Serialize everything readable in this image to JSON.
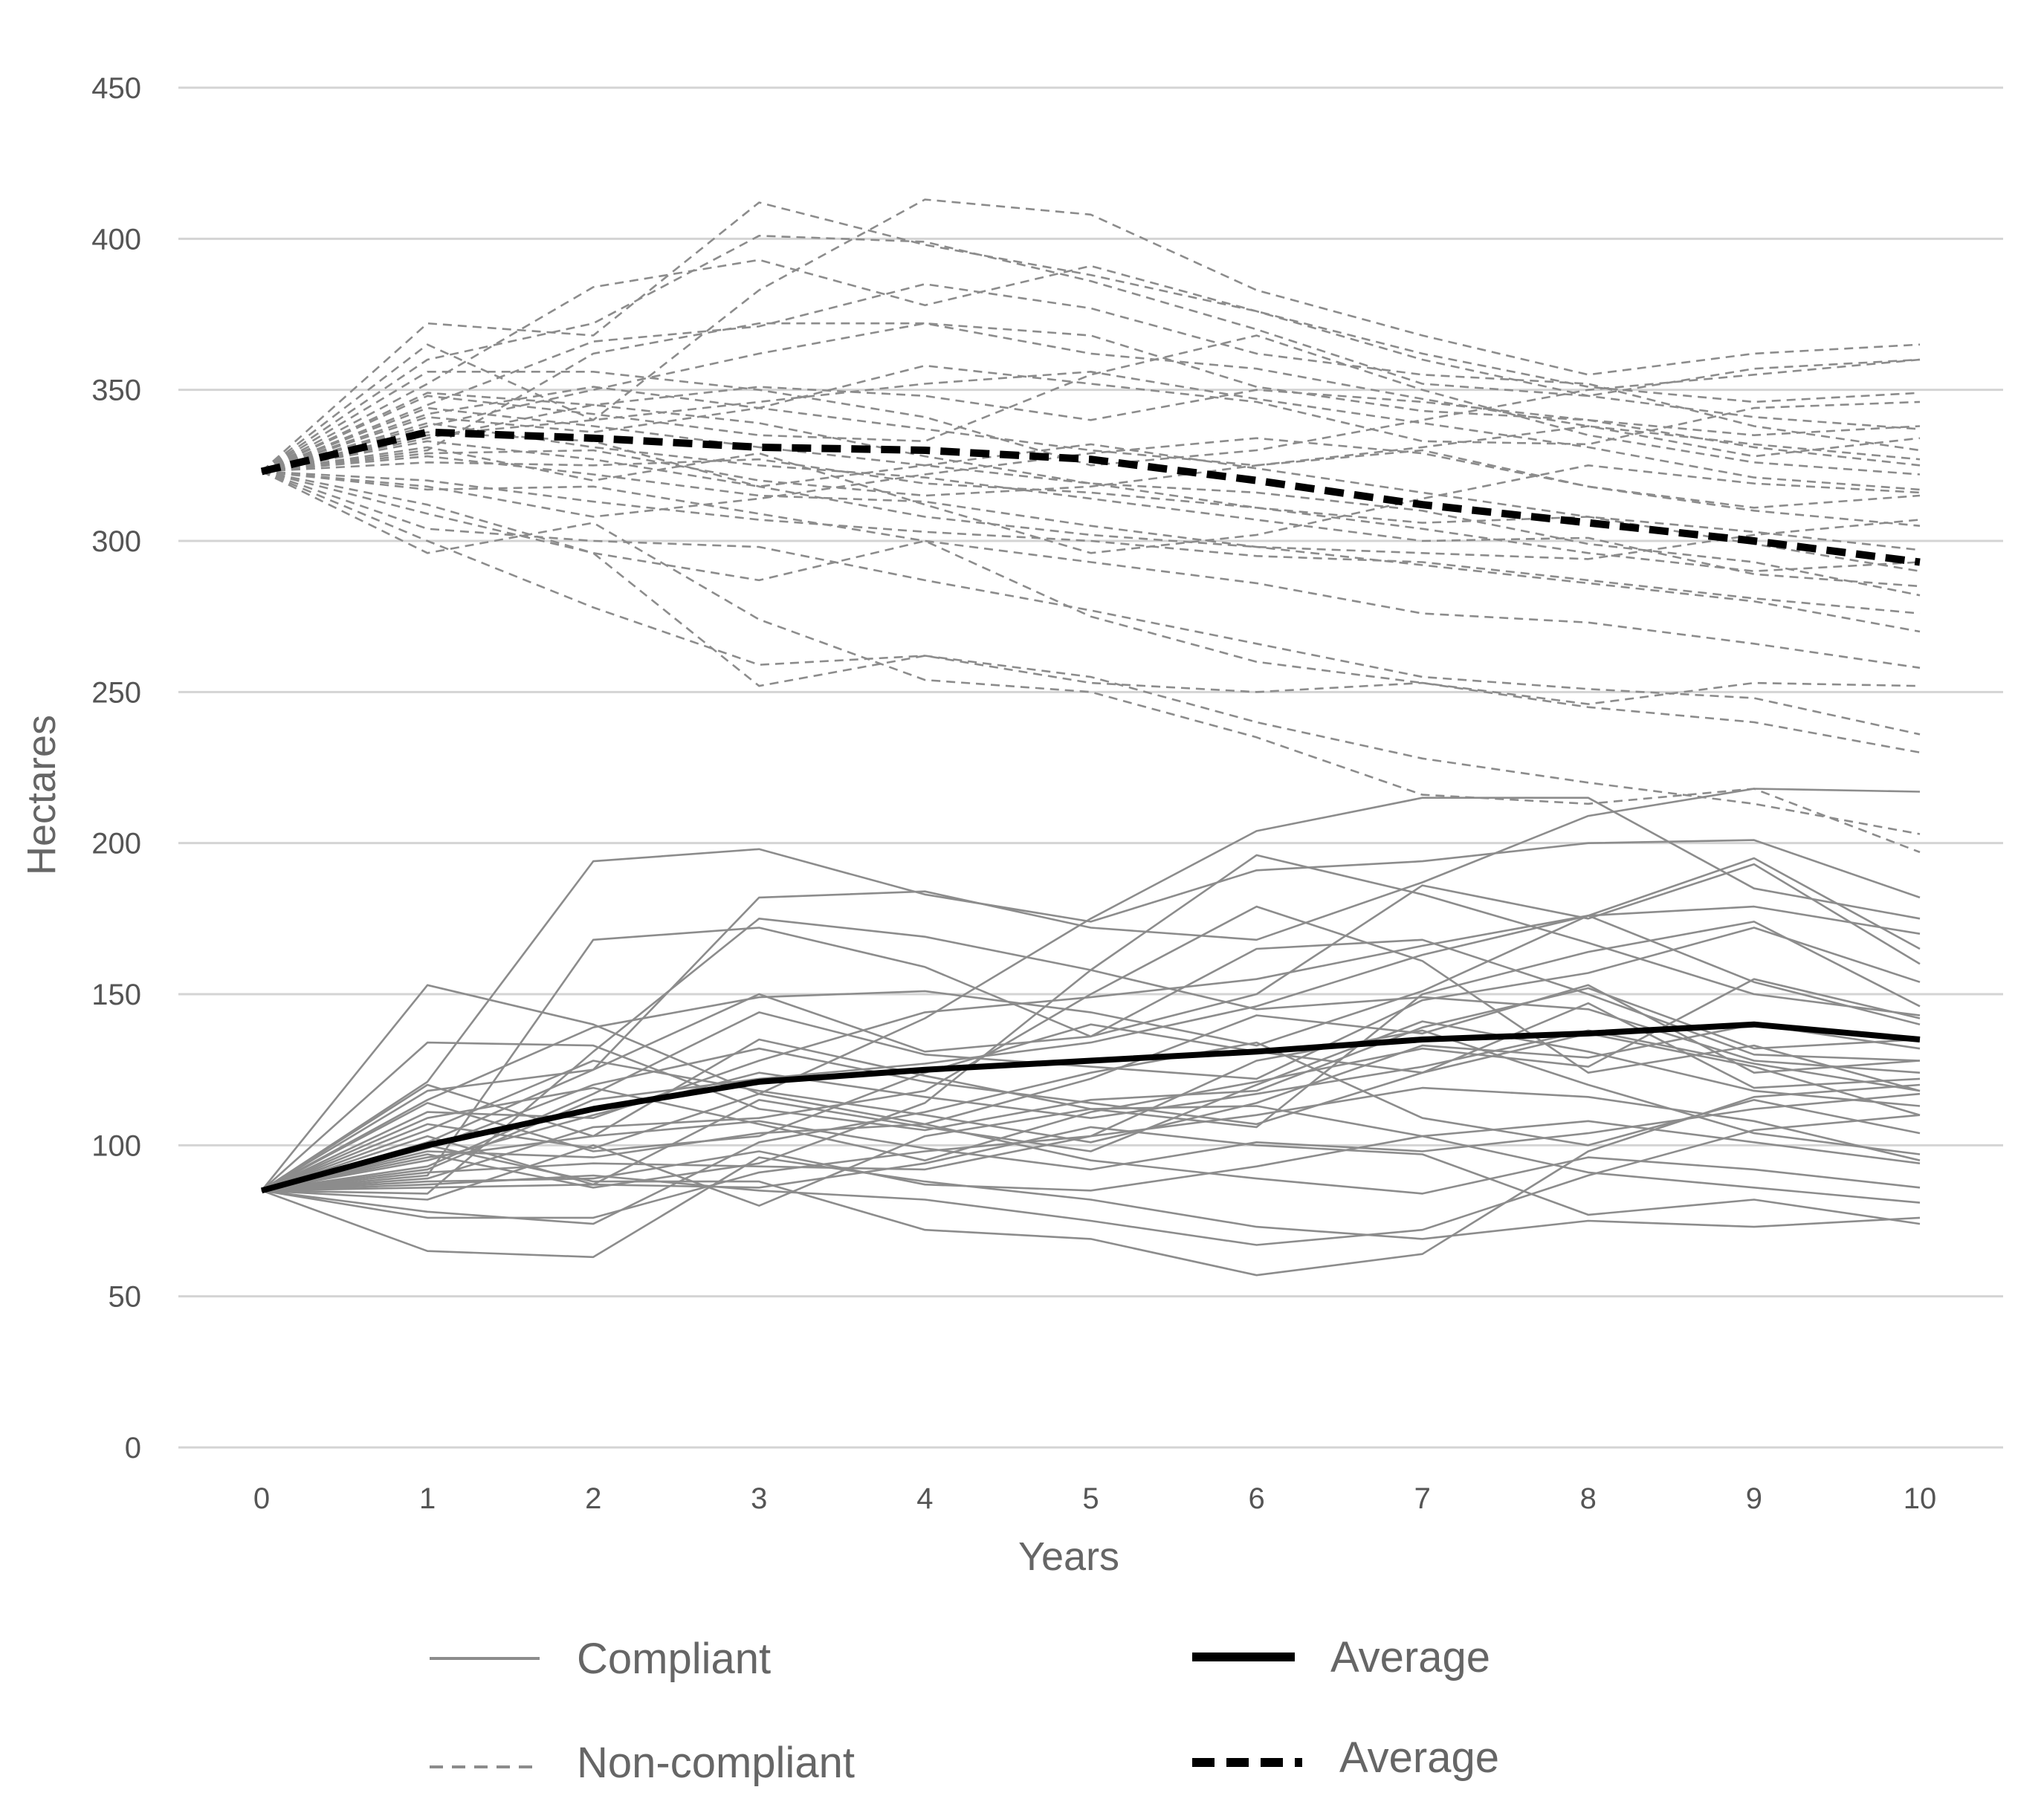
{
  "chart_data": {
    "type": "line",
    "xlabel": "Years",
    "ylabel": "Hectares",
    "x": [
      0,
      1,
      2,
      3,
      4,
      5,
      6,
      7,
      8,
      9,
      10
    ],
    "y_ticks": [
      0,
      50,
      100,
      150,
      200,
      250,
      300,
      350,
      400,
      450
    ],
    "ylim": [
      0,
      450
    ],
    "grid": true,
    "legend_position": "bottom",
    "legend": [
      {
        "label": "Compliant",
        "style": "thin-solid-grey"
      },
      {
        "label": "Average",
        "style": "thick-solid-black"
      },
      {
        "label": "Non-compliant",
        "style": "thin-dashed-grey"
      },
      {
        "label": "Average",
        "style": "thick-dashed-black"
      }
    ],
    "colors": {
      "individual": "#8c8c8c",
      "average": "#000000",
      "grid": "#d4d4d4"
    },
    "series_average_compliant": {
      "name": "Average",
      "values": [
        85,
        100,
        112,
        121,
        125,
        128,
        131,
        135,
        137,
        140,
        135
      ]
    },
    "series_average_noncompliant": {
      "name": "Average",
      "values": [
        323,
        336,
        334,
        331,
        330,
        327,
        320,
        312,
        306,
        300,
        293
      ]
    },
    "series_compliant": [
      [
        85,
        153,
        140,
        117,
        107,
        122,
        143,
        137,
        153,
        124,
        128
      ],
      [
        85,
        134,
        133,
        112,
        105,
        115,
        118,
        139,
        152,
        132,
        135
      ],
      [
        85,
        121,
        194,
        198,
        183,
        174,
        191,
        194,
        200,
        201,
        182
      ],
      [
        85,
        90,
        168,
        172,
        159,
        136,
        150,
        186,
        175,
        193,
        160
      ],
      [
        85,
        101,
        125,
        182,
        184,
        172,
        168,
        187,
        209,
        218,
        217
      ],
      [
        85,
        115,
        139,
        149,
        151,
        144,
        133,
        151,
        176,
        195,
        165
      ],
      [
        85,
        120,
        103,
        135,
        123,
        112,
        106,
        150,
        164,
        174,
        146
      ],
      [
        85,
        107,
        99,
        117,
        142,
        175,
        204,
        215,
        215,
        185,
        175
      ],
      [
        85,
        97,
        86,
        94,
        114,
        158,
        196,
        183,
        167,
        150,
        143
      ],
      [
        85,
        111,
        109,
        128,
        144,
        149,
        155,
        166,
        176,
        154,
        140
      ],
      [
        85,
        93,
        117,
        144,
        130,
        126,
        122,
        148,
        157,
        172,
        154
      ],
      [
        85,
        118,
        125,
        150,
        131,
        136,
        165,
        168,
        150,
        130,
        128
      ],
      [
        85,
        99,
        120,
        132,
        121,
        114,
        107,
        124,
        147,
        119,
        122
      ],
      [
        85,
        105,
        128,
        118,
        110,
        101,
        114,
        133,
        129,
        140,
        132
      ],
      [
        85,
        89,
        106,
        109,
        118,
        150,
        179,
        161,
        124,
        133,
        118
      ],
      [
        85,
        84,
        131,
        175,
        169,
        158,
        145,
        149,
        145,
        128,
        124
      ],
      [
        85,
        95,
        110,
        124,
        116,
        109,
        117,
        126,
        138,
        127,
        118
      ],
      [
        85,
        103,
        87,
        115,
        106,
        98,
        120,
        141,
        131,
        118,
        113
      ],
      [
        85,
        91,
        94,
        93,
        92,
        103,
        110,
        119,
        116,
        108,
        95
      ],
      [
        85,
        114,
        98,
        103,
        124,
        140,
        131,
        124,
        137,
        126,
        110
      ],
      [
        85,
        78,
        74,
        101,
        111,
        124,
        134,
        109,
        100,
        115,
        104
      ],
      [
        85,
        76,
        76,
        91,
        98,
        103,
        128,
        138,
        120,
        104,
        97
      ],
      [
        85,
        65,
        63,
        96,
        88,
        82,
        73,
        69,
        75,
        73,
        76
      ],
      [
        85,
        82,
        100,
        80,
        103,
        112,
        113,
        103,
        108,
        101,
        94
      ],
      [
        85,
        96,
        103,
        108,
        99,
        92,
        101,
        98,
        104,
        112,
        117
      ],
      [
        85,
        92,
        115,
        122,
        127,
        134,
        146,
        163,
        176,
        179,
        170
      ],
      [
        85,
        109,
        119,
        107,
        95,
        111,
        121,
        132,
        126,
        155,
        142
      ],
      [
        85,
        88,
        89,
        98,
        87,
        85,
        93,
        103,
        91,
        86,
        81
      ],
      [
        85,
        98,
        96,
        104,
        107,
        95,
        89,
        84,
        96,
        92,
        86
      ],
      [
        85,
        87,
        90,
        85,
        82,
        75,
        67,
        72,
        90,
        105,
        110
      ],
      [
        85,
        100,
        88,
        88,
        72,
        69,
        57,
        64,
        98,
        116,
        120
      ],
      [
        85,
        86,
        87,
        86,
        94,
        106,
        100,
        97,
        77,
        82,
        74
      ]
    ],
    "series_noncompliant": [
      [
        323,
        372,
        368,
        412,
        398,
        388,
        376,
        362,
        351,
        346,
        349
      ],
      [
        323,
        365,
        340,
        383,
        413,
        408,
        383,
        368,
        355,
        362,
        365
      ],
      [
        323,
        360,
        372,
        401,
        399,
        386,
        370,
        352,
        348,
        357,
        360
      ],
      [
        323,
        352,
        384,
        393,
        378,
        391,
        376,
        360,
        348,
        341,
        337
      ],
      [
        323,
        345,
        366,
        371,
        385,
        377,
        362,
        355,
        352,
        338,
        330
      ],
      [
        323,
        338,
        350,
        362,
        372,
        368,
        351,
        343,
        340,
        331,
        325
      ],
      [
        323,
        330,
        362,
        372,
        372,
        362,
        357,
        347,
        338,
        332,
        327
      ],
      [
        323,
        341,
        336,
        344,
        358,
        352,
        346,
        333,
        332,
        344,
        346
      ],
      [
        323,
        348,
        342,
        335,
        333,
        355,
        368,
        350,
        335,
        326,
        322
      ],
      [
        323,
        356,
        356,
        350,
        341,
        325,
        330,
        340,
        350,
        355,
        360
      ],
      [
        323,
        331,
        320,
        329,
        312,
        296,
        302,
        314,
        325,
        319,
        316
      ],
      [
        323,
        329,
        330,
        320,
        315,
        318,
        325,
        330,
        318,
        310,
        305
      ],
      [
        323,
        334,
        345,
        339,
        328,
        319,
        311,
        304,
        296,
        290,
        293
      ],
      [
        323,
        320,
        313,
        307,
        303,
        300,
        295,
        293,
        287,
        281,
        276
      ],
      [
        323,
        317,
        318,
        309,
        300,
        293,
        286,
        276,
        273,
        266,
        258
      ],
      [
        323,
        312,
        296,
        287,
        300,
        275,
        260,
        253,
        245,
        240,
        230
      ],
      [
        323,
        304,
        300,
        298,
        287,
        277,
        266,
        255,
        251,
        248,
        236
      ],
      [
        323,
        300,
        278,
        259,
        262,
        255,
        240,
        228,
        220,
        213,
        203
      ],
      [
        323,
        296,
        306,
        274,
        254,
        250,
        235,
        216,
        213,
        218,
        197
      ],
      [
        323,
        309,
        296,
        252,
        262,
        253,
        250,
        253,
        246,
        253,
        252
      ],
      [
        323,
        333,
        327,
        318,
        325,
        332,
        324,
        316,
        308,
        299,
        290
      ],
      [
        323,
        339,
        331,
        325,
        321,
        314,
        307,
        300,
        301,
        289,
        285
      ],
      [
        323,
        344,
        338,
        331,
        325,
        319,
        316,
        310,
        299,
        293,
        282
      ],
      [
        323,
        326,
        325,
        327,
        319,
        316,
        311,
        306,
        308,
        303,
        297
      ],
      [
        323,
        336,
        333,
        318,
        308,
        302,
        298,
        296,
        294,
        302,
        307
      ],
      [
        323,
        342,
        351,
        344,
        337,
        330,
        325,
        331,
        338,
        328,
        334
      ],
      [
        323,
        349,
        345,
        351,
        348,
        340,
        350,
        346,
        340,
        335,
        338
      ],
      [
        323,
        318,
        308,
        314,
        322,
        329,
        334,
        329,
        318,
        311,
        315
      ],
      [
        323,
        328,
        322,
        315,
        313,
        305,
        298,
        292,
        286,
        280,
        270
      ],
      [
        323,
        335,
        340,
        346,
        352,
        356,
        347,
        339,
        331,
        321,
        317
      ]
    ]
  }
}
